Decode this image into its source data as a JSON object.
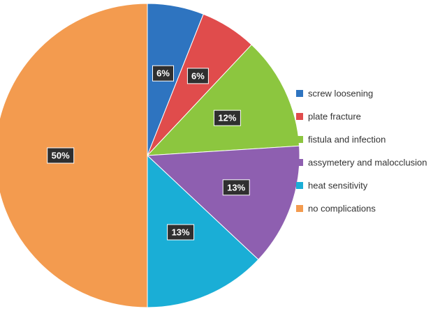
{
  "chart_data": {
    "type": "pie",
    "title": "",
    "legend_position": "right",
    "start": "top",
    "direction": "clockwise",
    "data_label_format": "percent",
    "slices": [
      {
        "label": "screw loosening",
        "value": 6,
        "color": "#2e74c0"
      },
      {
        "label": "plate fracture",
        "value": 6,
        "color": "#e04c4c"
      },
      {
        "label": "fistula and infection",
        "value": 12,
        "color": "#8cc63f"
      },
      {
        "label": "assymetery and malocclusion",
        "value": 13,
        "color": "#8e5fb0"
      },
      {
        "label": "heat sensitivity",
        "value": 13,
        "color": "#1aaed6"
      },
      {
        "label": "no complications",
        "value": 50,
        "color": "#f39b4f"
      }
    ]
  }
}
